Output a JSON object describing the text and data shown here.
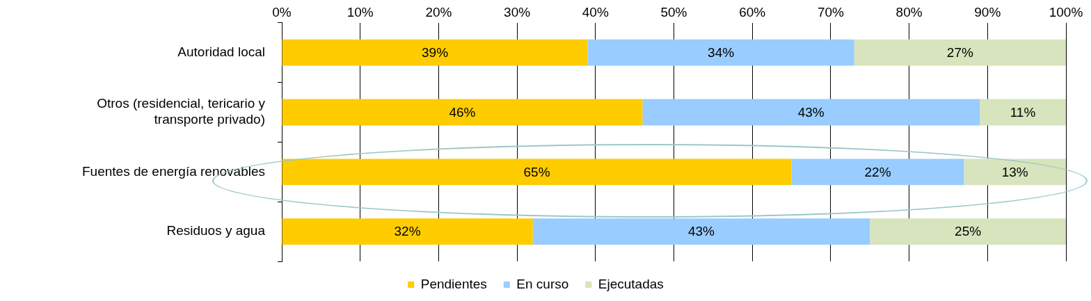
{
  "chart_data": {
    "type": "bar",
    "orientation": "horizontal",
    "stacked": true,
    "categories": [
      "Autoridad local",
      "Otros (residencial, tericario y transporte privado)",
      "Fuentes de energía renovables",
      "Residuos y agua"
    ],
    "series": [
      {
        "name": "Pendientes",
        "color": "#ffcc00",
        "values": [
          39,
          46,
          65,
          32
        ],
        "value_labels": [
          "39%",
          "46%",
          "65%",
          "32%"
        ]
      },
      {
        "name": "En curso",
        "color": "#99ccff",
        "values": [
          34,
          43,
          22,
          43
        ],
        "value_labels": [
          "34%",
          "43%",
          "22%",
          "43%"
        ]
      },
      {
        "name": "Ejecutadas",
        "color": "#d7e4bd",
        "values": [
          27,
          11,
          13,
          25
        ],
        "value_labels": [
          "27%",
          "11%",
          "13%",
          "25%"
        ]
      }
    ],
    "xlim": [
      0,
      100
    ],
    "xticks": [
      {
        "value": 0,
        "label": "0%"
      },
      {
        "value": 10,
        "label": "10%"
      },
      {
        "value": 20,
        "label": "20%"
      },
      {
        "value": 30,
        "label": "30%"
      },
      {
        "value": 40,
        "label": "40%"
      },
      {
        "value": 50,
        "label": "50%"
      },
      {
        "value": 60,
        "label": "60%"
      },
      {
        "value": 70,
        "label": "70%"
      },
      {
        "value": 80,
        "label": "80%"
      },
      {
        "value": 90,
        "label": "90%"
      },
      {
        "value": 100,
        "label": "100%"
      }
    ],
    "grid": "x",
    "legend": "bottom"
  }
}
